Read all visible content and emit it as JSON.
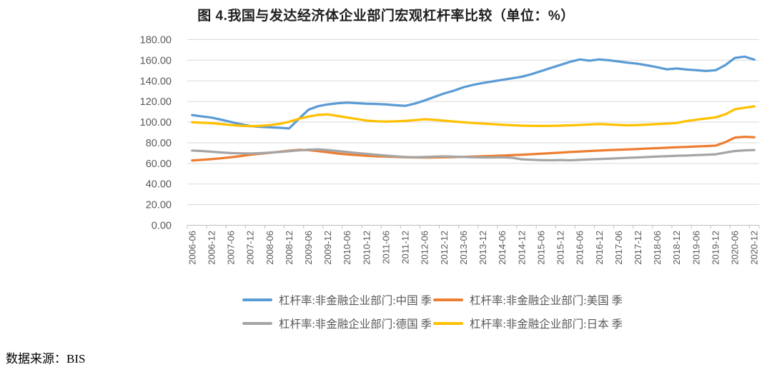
{
  "figure": {
    "title": "图 4.我国与发达经济体企业部门宏观杠杆率比较（单位：%）",
    "source_note": "数据来源：BIS"
  },
  "chart_data": {
    "type": "line",
    "title": "图 4.我国与发达经济体企业部门宏观杠杆率比较（单位：%）",
    "unit": "%",
    "x_frequency": "quarterly",
    "x_range": [
      "2006-06",
      "2020-12"
    ],
    "x_tick_labels": [
      "2006-06",
      "2006-12",
      "2007-06",
      "2007-12",
      "2008-06",
      "2008-12",
      "2009-06",
      "2009-12",
      "2010-06",
      "2010-12",
      "2011-06",
      "2011-12",
      "2012-06",
      "2012-12",
      "2013-06",
      "2013-12",
      "2014-06",
      "2014-12",
      "2015-06",
      "2015-12",
      "2016-06",
      "2016-12",
      "2017-06",
      "2017-12",
      "2018-06",
      "2018-12",
      "2019-06",
      "2019-12",
      "2020-06",
      "2020-12"
    ],
    "quarters_per_tick": 2,
    "ylim": [
      0,
      180
    ],
    "y_tick_labels": [
      "0.00",
      "20.00",
      "40.00",
      "60.00",
      "80.00",
      "100.00",
      "120.00",
      "140.00",
      "160.00",
      "180.00"
    ],
    "grid": "horizontal",
    "legend_position": "bottom",
    "colors": {
      "gridline": "#d9d9d9",
      "axis": "#bfbfbf",
      "tick_text": "#595959",
      "legend_text": "#595959"
    },
    "series": [
      {
        "id": "china",
        "name": "杠杆率:非金融企业部门:中国 季",
        "color": "#5B9BD5",
        "values": [
          106.9,
          105.6,
          104.4,
          102.4,
          100.2,
          98.0,
          96.2,
          95.5,
          95.0,
          94.6,
          93.9,
          103.0,
          112.0,
          115.5,
          117.2,
          118.3,
          118.9,
          118.4,
          117.9,
          117.6,
          117.2,
          116.4,
          115.8,
          118.0,
          121.0,
          124.5,
          127.8,
          130.5,
          133.8,
          136.2,
          138.0,
          139.5,
          141.0,
          142.5,
          144.0,
          146.5,
          149.5,
          152.5,
          155.5,
          158.5,
          160.8,
          159.6,
          160.8,
          160.0,
          158.8,
          157.6,
          156.6,
          155.0,
          153.2,
          151.2,
          152.0,
          151.0,
          150.4,
          149.6,
          150.3,
          155.2,
          162.3,
          163.5,
          160.6
        ]
      },
      {
        "id": "usa",
        "name": "杠杆率:非金融企业部门:美国 季",
        "color": "#ED7D31",
        "values": [
          62.8,
          63.4,
          64.1,
          65.0,
          66.0,
          67.1,
          68.3,
          69.4,
          70.3,
          71.3,
          72.3,
          73.1,
          72.8,
          71.9,
          70.8,
          69.6,
          68.7,
          68.0,
          67.4,
          66.9,
          66.6,
          66.3,
          66.0,
          65.8,
          65.7,
          65.8,
          66.0,
          66.1,
          66.3,
          66.6,
          66.9,
          67.2,
          67.6,
          68.0,
          68.4,
          68.9,
          69.4,
          69.9,
          70.4,
          71.0,
          71.5,
          72.0,
          72.4,
          72.8,
          73.2,
          73.6,
          74.0,
          74.4,
          74.8,
          75.2,
          75.6,
          76.0,
          76.4,
          76.8,
          77.2,
          80.5,
          85.0,
          85.8,
          85.3
        ]
      },
      {
        "id": "germany",
        "name": "杠杆率:非金融企业部门:德国 季",
        "color": "#A5A5A5",
        "values": [
          72.4,
          72.0,
          71.3,
          70.6,
          70.0,
          69.7,
          69.6,
          69.9,
          70.4,
          71.0,
          71.8,
          72.6,
          73.3,
          73.5,
          73.0,
          72.0,
          71.0,
          70.0,
          69.2,
          68.4,
          67.6,
          66.8,
          66.2,
          66.0,
          66.2,
          66.5,
          66.8,
          66.5,
          66.2,
          66.0,
          65.8,
          65.8,
          66.0,
          65.5,
          64.0,
          63.5,
          63.2,
          63.0,
          63.3,
          63.0,
          63.4,
          63.8,
          64.2,
          64.6,
          65.0,
          65.4,
          65.8,
          66.2,
          66.6,
          67.0,
          67.4,
          67.6,
          68.0,
          68.4,
          68.8,
          70.5,
          72.0,
          72.6,
          73.0
        ]
      },
      {
        "id": "japan",
        "name": "杠杆率:非金融企业部门:日本 季",
        "color": "#FFC000",
        "values": [
          99.8,
          99.4,
          99.0,
          98.2,
          97.3,
          96.5,
          96.0,
          96.4,
          97.1,
          98.3,
          100.3,
          103.2,
          105.4,
          107.0,
          107.5,
          106.0,
          104.5,
          103.0,
          101.5,
          100.8,
          100.5,
          100.8,
          101.2,
          102.0,
          102.8,
          102.2,
          101.4,
          100.5,
          99.8,
          99.2,
          98.6,
          98.0,
          97.5,
          97.0,
          96.6,
          96.4,
          96.3,
          96.4,
          96.6,
          96.9,
          97.3,
          97.7,
          98.1,
          97.7,
          97.3,
          96.9,
          97.2,
          97.6,
          98.1,
          98.6,
          99.2,
          101.0,
          102.3,
          103.5,
          104.6,
          107.5,
          112.5,
          114.0,
          115.3
        ]
      }
    ]
  }
}
